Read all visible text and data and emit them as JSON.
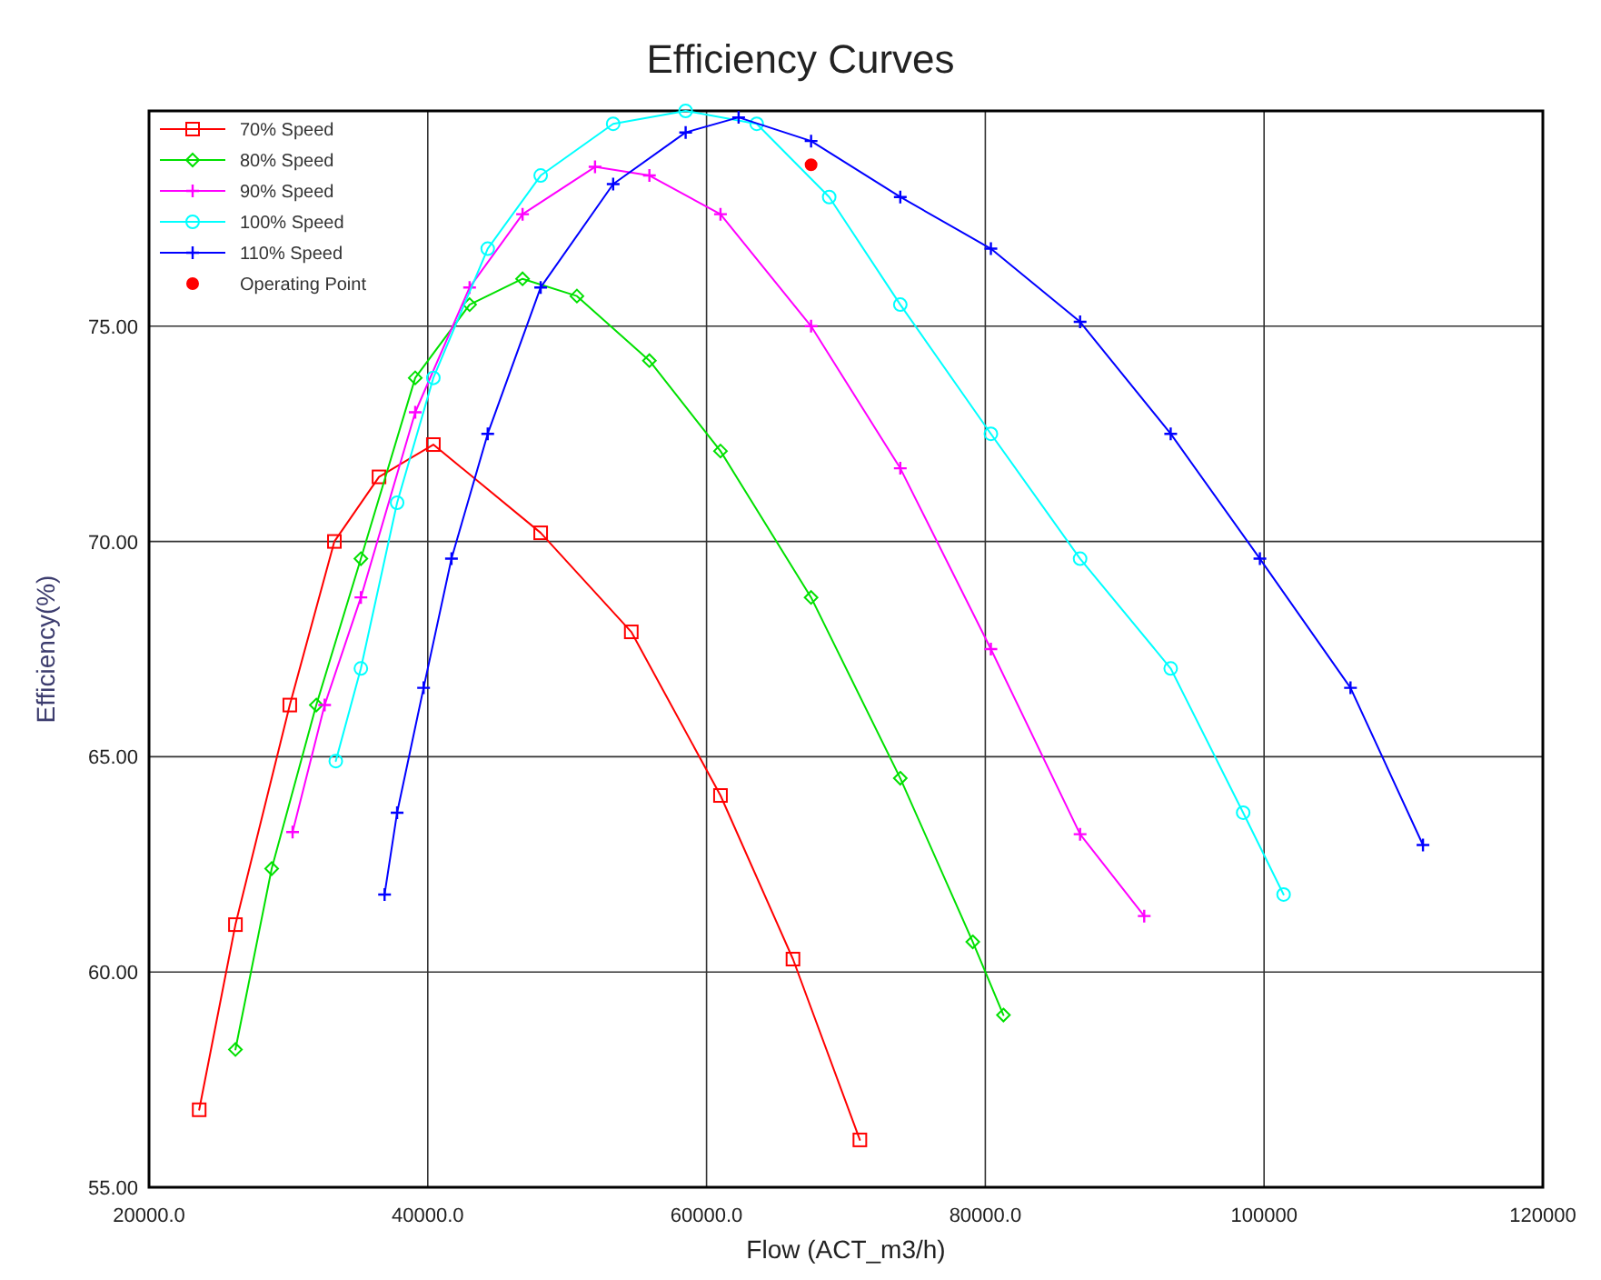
{
  "chart_data": {
    "type": "line",
    "title": "Efficiency Curves",
    "xlabel": "Flow (ACT_m3/h)",
    "ylabel": "Efficiency(%)",
    "xlim": [
      20000,
      120000
    ],
    "xticks": [
      {
        "value": 20000,
        "label": "20000.0"
      },
      {
        "value": 40000,
        "label": "40000.0"
      },
      {
        "value": 60000,
        "label": "60000.0"
      },
      {
        "value": 80000,
        "label": "80000.0"
      },
      100000,
      120000
    ],
    "ylim": [
      55,
      80
    ],
    "yticks": [
      {
        "value": 55,
        "label": "55.00"
      },
      {
        "value": 60,
        "label": "60.00"
      },
      {
        "value": 65,
        "label": "65.00"
      },
      {
        "value": 70,
        "label": "70.00"
      },
      {
        "value": 75,
        "label": "75.00"
      }
    ],
    "grid": true,
    "legend": "top left",
    "series": [
      {
        "name": "70% Speed",
        "color": "#ff0000",
        "marker": "square",
        "x": [
          23600,
          26200,
          30100,
          33300,
          36500,
          40400,
          48100,
          54600,
          61000,
          66200,
          71000
        ],
        "values": [
          56.8,
          61.1,
          66.2,
          70.0,
          71.5,
          72.25,
          70.2,
          67.9,
          64.1,
          60.3,
          56.1
        ]
      },
      {
        "name": "80% Speed",
        "color": "#00e000",
        "marker": "diamond",
        "x": [
          26200,
          28800,
          32000,
          35200,
          39100,
          43000,
          46800,
          50700,
          55900,
          61000,
          67500,
          73900,
          79100,
          81300
        ],
        "values": [
          58.2,
          62.4,
          66.2,
          69.6,
          73.8,
          75.5,
          76.1,
          75.7,
          74.2,
          72.1,
          68.7,
          64.5,
          60.7,
          59.0
        ]
      },
      {
        "name": "90% Speed",
        "color": "#ff00ff",
        "marker": "cross",
        "x": [
          30300,
          32600,
          35200,
          39100,
          43000,
          46800,
          52000,
          55900,
          61000,
          67500,
          73900,
          80400,
          86800,
          91400
        ],
        "values": [
          63.25,
          66.2,
          68.7,
          73.0,
          75.9,
          77.6,
          78.7,
          78.5,
          77.6,
          75.0,
          71.7,
          67.5,
          63.2,
          61.3
        ]
      },
      {
        "name": "100% Speed",
        "color": "#00ffff",
        "marker": "circle",
        "x": [
          33400,
          35200,
          37800,
          40400,
          44300,
          48100,
          53300,
          58500,
          63600,
          68800,
          73900,
          80400,
          86800,
          93300,
          98500,
          101400
        ],
        "values": [
          64.9,
          67.05,
          70.9,
          73.8,
          76.8,
          78.5,
          79.7,
          80.0,
          79.7,
          78.0,
          75.5,
          72.5,
          69.6,
          67.05,
          63.7,
          61.8
        ]
      },
      {
        "name": "110% Speed",
        "color": "#0000ff",
        "marker": "cross",
        "x": [
          36900,
          37800,
          39700,
          41700,
          44300,
          48100,
          53300,
          58500,
          62300,
          67500,
          73900,
          80400,
          86800,
          93300,
          99700,
          106200,
          111400
        ],
        "values": [
          61.8,
          63.7,
          66.6,
          69.6,
          72.5,
          75.9,
          78.3,
          79.5,
          79.85,
          79.3,
          78.0,
          76.8,
          75.1,
          72.5,
          69.6,
          66.6,
          62.95
        ]
      },
      {
        "name": "Operating Point",
        "type": "scatter",
        "color": "#ff0000",
        "marker": "circle",
        "x": [
          67500
        ],
        "values": [
          78.75
        ]
      }
    ]
  }
}
